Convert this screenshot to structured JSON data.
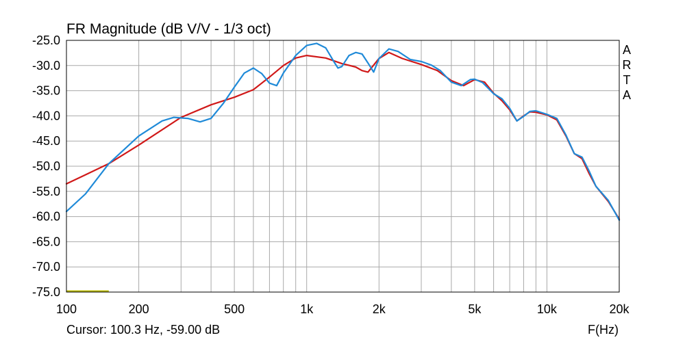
{
  "chart_data": {
    "type": "line",
    "title": "FR Magnitude (dB V/V - 1/3 oct)",
    "xlabel": "F(Hz)",
    "ylabel": "",
    "x_scale": "log",
    "xlim": [
      100,
      20000
    ],
    "ylim": [
      -75,
      -25
    ],
    "grid": true,
    "x_ticks": [
      {
        "value": 100,
        "label": "100"
      },
      {
        "value": 200,
        "label": "200"
      },
      {
        "value": 500,
        "label": "500"
      },
      {
        "value": 1000,
        "label": "1k"
      },
      {
        "value": 2000,
        "label": "2k"
      },
      {
        "value": 5000,
        "label": "5k"
      },
      {
        "value": 10000,
        "label": "10k"
      },
      {
        "value": 20000,
        "label": "20k"
      }
    ],
    "y_ticks": [
      {
        "value": -25,
        "label": "-25.0"
      },
      {
        "value": -30,
        "label": "-30.0"
      },
      {
        "value": -35,
        "label": "-35.0"
      },
      {
        "value": -40,
        "label": "-40.0"
      },
      {
        "value": -45,
        "label": "-45.0"
      },
      {
        "value": -50,
        "label": "-50.0"
      },
      {
        "value": -55,
        "label": "-55.0"
      },
      {
        "value": -60,
        "label": "-60.0"
      },
      {
        "value": -65,
        "label": "-65.0"
      },
      {
        "value": -70,
        "label": "-70.0"
      },
      {
        "value": -75,
        "label": "-75.0"
      }
    ],
    "watermark": [
      "A",
      "R",
      "T",
      "A"
    ],
    "cursor_text": "Cursor: 100.3 Hz, -59.00 dB",
    "cursor_marker": {
      "x": [
        100,
        150
      ],
      "y": -74.8,
      "color": "#b8b800"
    },
    "series": [
      {
        "color": "#d01818",
        "points": [
          [
            100,
            -53.5
          ],
          [
            150,
            -49.5
          ],
          [
            200,
            -45.8
          ],
          [
            300,
            -40.3
          ],
          [
            400,
            -37.8
          ],
          [
            500,
            -36.3
          ],
          [
            600,
            -34.8
          ],
          [
            700,
            -32.3
          ],
          [
            800,
            -30.0
          ],
          [
            900,
            -28.5
          ],
          [
            1000,
            -28.0
          ],
          [
            1200,
            -28.5
          ],
          [
            1400,
            -29.6
          ],
          [
            1600,
            -30.3
          ],
          [
            1700,
            -31.0
          ],
          [
            1800,
            -31.3
          ],
          [
            2000,
            -28.6
          ],
          [
            2200,
            -27.4
          ],
          [
            2500,
            -28.6
          ],
          [
            3000,
            -29.8
          ],
          [
            3500,
            -31.0
          ],
          [
            4000,
            -33.0
          ],
          [
            4500,
            -34.0
          ],
          [
            5000,
            -32.8
          ],
          [
            5500,
            -33.3
          ],
          [
            6000,
            -35.5
          ],
          [
            6500,
            -37.0
          ],
          [
            7000,
            -38.8
          ],
          [
            7500,
            -41.0
          ],
          [
            8000,
            -40.0
          ],
          [
            8500,
            -39.2
          ],
          [
            9000,
            -39.3
          ],
          [
            10000,
            -39.8
          ],
          [
            11000,
            -40.8
          ],
          [
            12000,
            -44.0
          ],
          [
            13000,
            -47.5
          ],
          [
            14000,
            -48.5
          ],
          [
            15000,
            -51.5
          ],
          [
            16000,
            -54.0
          ],
          [
            18000,
            -57.0
          ],
          [
            20000,
            -60.5
          ]
        ]
      },
      {
        "color": "#1f8ad8",
        "points": [
          [
            100,
            -59.0
          ],
          [
            120,
            -55.5
          ],
          [
            150,
            -49.5
          ],
          [
            200,
            -44.0
          ],
          [
            250,
            -41.0
          ],
          [
            280,
            -40.3
          ],
          [
            320,
            -40.5
          ],
          [
            360,
            -41.2
          ],
          [
            400,
            -40.5
          ],
          [
            450,
            -37.5
          ],
          [
            500,
            -34.3
          ],
          [
            550,
            -31.5
          ],
          [
            600,
            -30.5
          ],
          [
            650,
            -31.6
          ],
          [
            700,
            -33.5
          ],
          [
            750,
            -34.0
          ],
          [
            800,
            -31.5
          ],
          [
            900,
            -28.0
          ],
          [
            1000,
            -26.0
          ],
          [
            1100,
            -25.6
          ],
          [
            1200,
            -26.5
          ],
          [
            1300,
            -29.3
          ],
          [
            1350,
            -30.5
          ],
          [
            1400,
            -30.2
          ],
          [
            1500,
            -28.0
          ],
          [
            1600,
            -27.4
          ],
          [
            1700,
            -27.7
          ],
          [
            1800,
            -29.5
          ],
          [
            1900,
            -31.3
          ],
          [
            2000,
            -28.6
          ],
          [
            2200,
            -26.7
          ],
          [
            2400,
            -27.2
          ],
          [
            2700,
            -28.8
          ],
          [
            3000,
            -29.2
          ],
          [
            3300,
            -29.9
          ],
          [
            3600,
            -31.0
          ],
          [
            4000,
            -33.3
          ],
          [
            4400,
            -34.0
          ],
          [
            4800,
            -32.8
          ],
          [
            5000,
            -32.7
          ],
          [
            5400,
            -33.4
          ],
          [
            6000,
            -35.6
          ],
          [
            6500,
            -36.6
          ],
          [
            7000,
            -38.5
          ],
          [
            7500,
            -41.0
          ],
          [
            8000,
            -40.1
          ],
          [
            8500,
            -39.1
          ],
          [
            9000,
            -39.0
          ],
          [
            10000,
            -39.7
          ],
          [
            11000,
            -40.5
          ],
          [
            12000,
            -43.8
          ],
          [
            13000,
            -47.5
          ],
          [
            14000,
            -48.2
          ],
          [
            15000,
            -51.0
          ],
          [
            16000,
            -54.0
          ],
          [
            18000,
            -56.8
          ],
          [
            20000,
            -60.7
          ]
        ]
      }
    ]
  }
}
